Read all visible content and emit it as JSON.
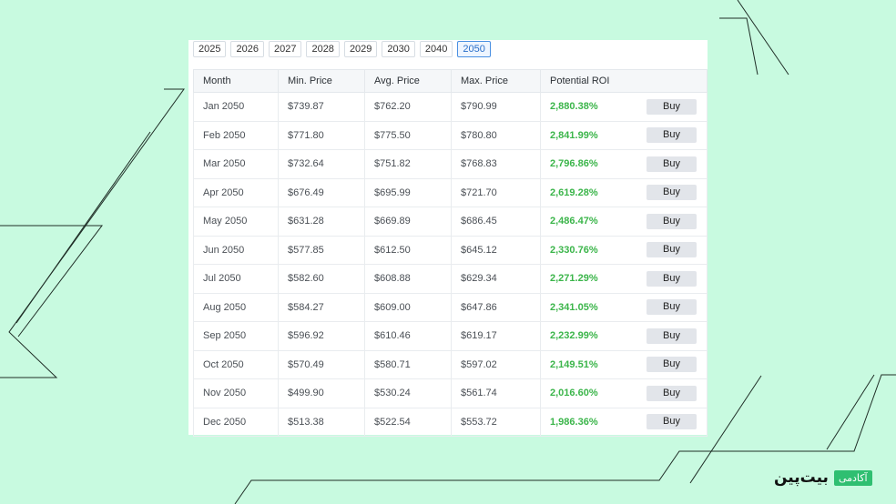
{
  "years": [
    "2025",
    "2026",
    "2027",
    "2028",
    "2029",
    "2030",
    "2040",
    "2050"
  ],
  "active_year": "2050",
  "headers": [
    "Month",
    "Min. Price",
    "Avg. Price",
    "Max. Price",
    "Potential ROI",
    ""
  ],
  "buy_label": "Buy",
  "rows": [
    {
      "month": "Jan 2050",
      "min": "$739.87",
      "avg": "$762.20",
      "max": "$790.99",
      "roi": "2,880.38%"
    },
    {
      "month": "Feb 2050",
      "min": "$771.80",
      "avg": "$775.50",
      "max": "$780.80",
      "roi": "2,841.99%"
    },
    {
      "month": "Mar 2050",
      "min": "$732.64",
      "avg": "$751.82",
      "max": "$768.83",
      "roi": "2,796.86%"
    },
    {
      "month": "Apr 2050",
      "min": "$676.49",
      "avg": "$695.99",
      "max": "$721.70",
      "roi": "2,619.28%"
    },
    {
      "month": "May 2050",
      "min": "$631.28",
      "avg": "$669.89",
      "max": "$686.45",
      "roi": "2,486.47%"
    },
    {
      "month": "Jun 2050",
      "min": "$577.85",
      "avg": "$612.50",
      "max": "$645.12",
      "roi": "2,330.76%"
    },
    {
      "month": "Jul 2050",
      "min": "$582.60",
      "avg": "$608.88",
      "max": "$629.34",
      "roi": "2,271.29%"
    },
    {
      "month": "Aug 2050",
      "min": "$584.27",
      "avg": "$609.00",
      "max": "$647.86",
      "roi": "2,341.05%"
    },
    {
      "month": "Sep 2050",
      "min": "$596.92",
      "avg": "$610.46",
      "max": "$619.17",
      "roi": "2,232.99%"
    },
    {
      "month": "Oct 2050",
      "min": "$570.49",
      "avg": "$580.71",
      "max": "$597.02",
      "roi": "2,149.51%"
    },
    {
      "month": "Nov 2050",
      "min": "$499.90",
      "avg": "$530.24",
      "max": "$561.74",
      "roi": "2,016.60%"
    },
    {
      "month": "Dec 2050",
      "min": "$513.38",
      "avg": "$522.54",
      "max": "$553.72",
      "roi": "1,986.36%"
    }
  ],
  "logo": {
    "word": "بیت‌پین",
    "badge": "آکادمی"
  },
  "colors": {
    "background": "#c8fae0",
    "roi_green": "#3bb54a",
    "active_tab": "#4a90e2"
  }
}
